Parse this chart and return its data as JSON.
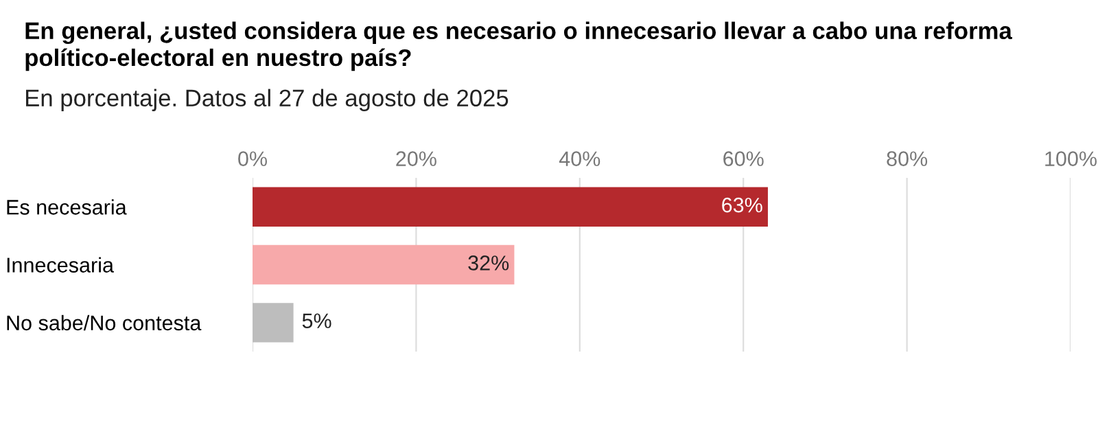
{
  "chart_data": {
    "type": "bar",
    "orientation": "horizontal",
    "title": "En general, ¿usted considera que es necesario o innecesario llevar a cabo una reforma político-electoral en nuestro país?",
    "subtitle": "En porcentaje. Datos al 27 de agosto de 2025",
    "categories": [
      "Es necesaria",
      "Innecesaria",
      "No sabe/No contesta"
    ],
    "values": [
      63,
      32,
      5
    ],
    "colors": [
      "#b5292d",
      "#f7a9aa",
      "#bdbdbd"
    ],
    "value_labels": [
      "63%",
      "32%",
      "5%"
    ],
    "xlim": [
      0,
      100
    ],
    "xticks": [
      {
        "value": 0,
        "label": "0%"
      },
      {
        "value": 20,
        "label": "20%"
      },
      {
        "value": 40,
        "label": "40%"
      },
      {
        "value": 60,
        "label": "60%"
      },
      {
        "value": 80,
        "label": "80%"
      },
      {
        "value": 100,
        "label": "100%"
      }
    ],
    "grid": "x",
    "legend": false
  }
}
